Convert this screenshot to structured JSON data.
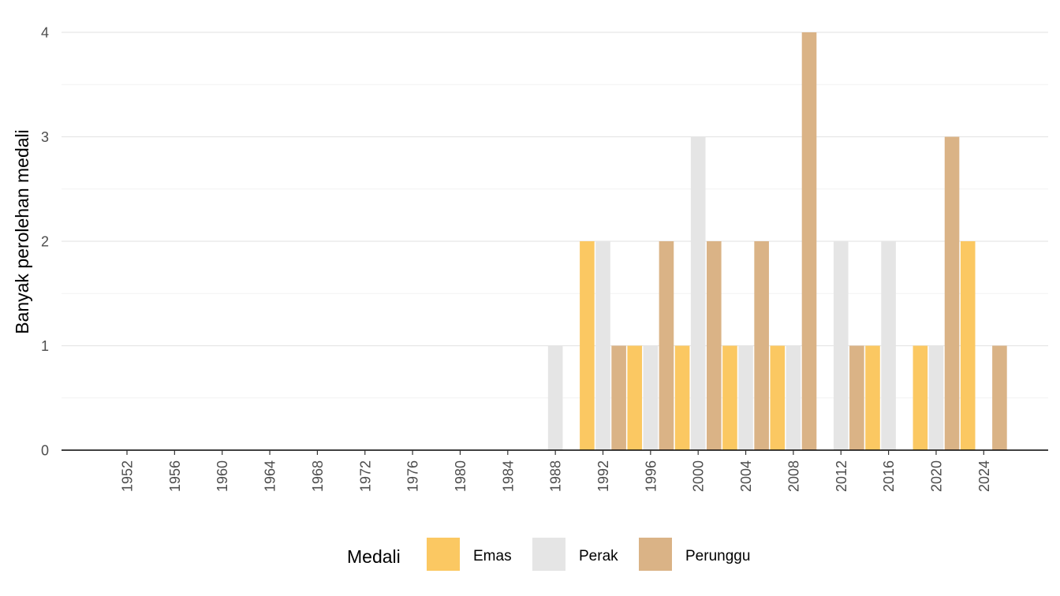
{
  "chart_data": {
    "type": "bar",
    "title": "",
    "xlabel": "",
    "ylabel": "Banyak perolehan medali",
    "categories": [
      1952,
      1956,
      1960,
      1964,
      1968,
      1972,
      1976,
      1980,
      1984,
      1988,
      1992,
      1996,
      2000,
      2004,
      2008,
      2012,
      2016,
      2020,
      2024
    ],
    "ylim": [
      0,
      4
    ],
    "yticks": [
      0,
      1,
      2,
      3,
      4
    ],
    "grid": true,
    "legend": {
      "title": "Medali",
      "position": "bottom"
    },
    "series": [
      {
        "name": "Emas",
        "color": "#FBC862",
        "values": [
          0,
          0,
          0,
          0,
          0,
          0,
          0,
          0,
          0,
          0,
          2,
          1,
          1,
          1,
          1,
          0,
          1,
          1,
          2
        ]
      },
      {
        "name": "Perak",
        "color": "#E5E5E5",
        "values": [
          0,
          0,
          0,
          0,
          0,
          0,
          0,
          0,
          0,
          1,
          2,
          1,
          3,
          1,
          1,
          2,
          2,
          1,
          0
        ]
      },
      {
        "name": "Perunggu",
        "color": "#DAB386",
        "values": [
          0,
          0,
          0,
          0,
          0,
          0,
          0,
          0,
          0,
          0,
          1,
          2,
          2,
          2,
          4,
          1,
          0,
          3,
          1
        ]
      }
    ]
  }
}
